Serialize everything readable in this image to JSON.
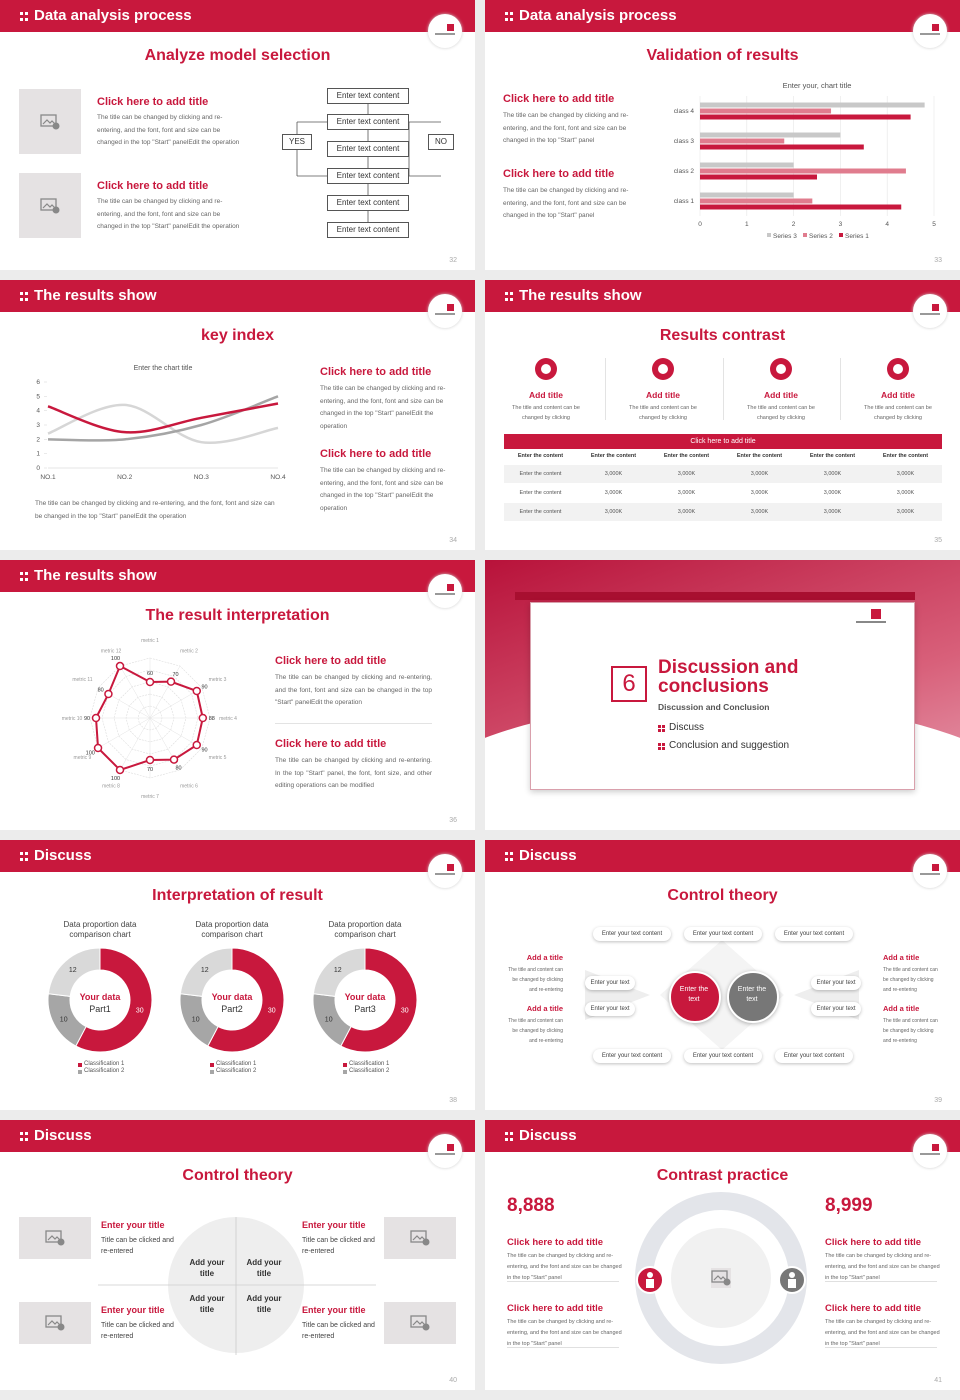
{
  "slides": [
    {
      "header": "Data analysis process",
      "title": "Analyze model selection",
      "page": "32",
      "items": [
        {
          "title": "Click here to add title",
          "text": "The title can be changed by clicking and re-entering, and the font, font and size can be changed in the top \"Start\" panelEdit the operation"
        },
        {
          "title": "Click here to add title",
          "text": "The title can be changed by clicking and re-entering, and the font, font and size can be changed in the top \"Start\" panelEdit the operation"
        }
      ],
      "flow": {
        "boxes": [
          "Enter text content",
          "Enter text content",
          "Enter text content",
          "Enter text content",
          "Enter text content",
          "Enter text content"
        ],
        "yes": "YES",
        "no": "NO"
      }
    },
    {
      "header": "Data analysis process",
      "title": "Validation of results",
      "page": "33",
      "items": [
        {
          "title": "Click here to add title",
          "text": "The title can be changed by clicking and re-entering, and the font, font and size can be changed in the top \"Start\" panel"
        },
        {
          "title": "Click here to add title",
          "text": "The title can be changed by clicking and re-entering, and the font, font and size can be changed in the top \"Start\" panel"
        }
      ],
      "chart": {
        "type": "bar",
        "orientation": "horizontal",
        "title": "Enter your, chart title",
        "categories": [
          "class 1",
          "class 2",
          "class 3",
          "class 4"
        ],
        "series": [
          {
            "name": "Series 1",
            "color": "#c8183d",
            "values": [
              4.3,
              2.5,
              3.5,
              4.5
            ]
          },
          {
            "name": "Series 2",
            "color": "#e07c8e",
            "values": [
              2.4,
              4.4,
              1.8,
              2.8
            ]
          },
          {
            "name": "Series 3",
            "color": "#c8c8c8",
            "values": [
              2.0,
              2.0,
              3.0,
              4.8
            ]
          }
        ],
        "xlim": [
          0,
          5
        ],
        "xticks": [
          0,
          1,
          2,
          3,
          4,
          5
        ],
        "grid": true
      }
    },
    {
      "header": "The results show",
      "title": "key index",
      "page": "34",
      "note": "The title can be changed by clicking and re-entering, and the font, font and size can be changed in the top \"Start\" panelEdit the operation",
      "items": [
        {
          "title": "Click here to add title",
          "text": "The title can be changed by clicking and re-entering, and the font, font and size can be changed in the top \"Start\" panelEdit the operation"
        },
        {
          "title": "Click here to add title",
          "text": "The title can be changed by clicking and re-entering, and the font, font and size can be changed in the top \"Start\" panelEdit the operation"
        }
      ],
      "chart": {
        "type": "line",
        "smooth": true,
        "title": "Enter the chart title",
        "categories": [
          "NO.1",
          "NO.2",
          "NO.3",
          "NO.4"
        ],
        "series": [
          {
            "color": "#c8183d",
            "values": [
              4.3,
              2.5,
              3.5,
              4.5
            ]
          },
          {
            "color": "#a5a5a5",
            "values": [
              2.0,
              2.0,
              3.0,
              5.0
            ]
          },
          {
            "color": "#d6d6d6",
            "values": [
              2.4,
              4.4,
              1.8,
              2.8
            ]
          }
        ],
        "ylim": [
          0,
          6
        ],
        "yticks": [
          0,
          1,
          2,
          3,
          4,
          5,
          6
        ]
      }
    },
    {
      "header": "The results show",
      "title": "Results contrast",
      "page": "35",
      "columns": [
        {
          "title": "Add title",
          "text": "The title and content can be changed by clicking"
        },
        {
          "title": "Add title",
          "text": "The title and content can be changed by clicking"
        },
        {
          "title": "Add title",
          "text": "The title and content can be changed by clicking"
        },
        {
          "title": "Add title",
          "text": "The title and content can be changed by clicking"
        }
      ],
      "table": {
        "caption": "Click here to add title",
        "header": [
          "Enter the content",
          "Enter the content",
          "Enter the content",
          "Enter the content",
          "Enter the content",
          "Enter the content"
        ],
        "rows": [
          [
            "Enter the content",
            "3,000K",
            "3,000K",
            "3,000K",
            "3,000K",
            "3,000K"
          ],
          [
            "Enter the content",
            "3,000K",
            "3,000K",
            "3,000K",
            "3,000K",
            "3,000K"
          ],
          [
            "Enter the content",
            "3,000K",
            "3,000K",
            "3,000K",
            "3,000K",
            "3,000K"
          ]
        ]
      }
    },
    {
      "header": "The results show",
      "title": "The result interpretation",
      "page": "36",
      "chart": {
        "type": "radar",
        "axes": [
          "metric 1",
          "metric 2",
          "metric 3",
          "metric 4",
          "metric 5",
          "metric 6",
          "metric 7",
          "metric 8",
          "metric 9",
          "metric 10",
          "metric 11",
          "metric 12"
        ],
        "values": [
          60,
          70,
          90,
          88,
          90,
          80,
          70,
          100,
          100,
          90,
          80,
          100
        ],
        "color": "#c8183d",
        "rlim": [
          0,
          100
        ]
      },
      "items": [
        {
          "title": "Click here to add title",
          "text": "The title can be changed by clicking and re-entering, and the font, font and size can be changed in the top \"Start\" panelEdit the operation"
        },
        {
          "title": "Click here to add title",
          "text": "The title can be changed by clicking and re-entering. In the top \"Start\" panel, the font, font size, and other editing operations can be modified"
        }
      ]
    },
    {
      "number": "6",
      "title": "Discussion and conclusions",
      "subtitle": "Discussion and Conclusion",
      "bullets": [
        "Discuss",
        "Conclusion and suggestion"
      ],
      "page": "37"
    },
    {
      "header": "Discuss",
      "title": "Interpretation of result",
      "page": "38",
      "charts": [
        {
          "type": "donut",
          "title": "Data proportion data comparison chart",
          "center_title": "Your data",
          "center_label": "Part1",
          "categories": [
            "Classification 1",
            "Classification 2",
            null
          ],
          "values": [
            30,
            10,
            12
          ],
          "colors": [
            "#c8183d",
            "#a6a6a6",
            "#d9d9d9"
          ]
        },
        {
          "type": "donut",
          "title": "Data proportion data comparison chart",
          "center_title": "Your data",
          "center_label": "Part2",
          "categories": [
            "Classification 1",
            "Classification 2",
            null
          ],
          "values": [
            30,
            10,
            12
          ],
          "colors": [
            "#c8183d",
            "#a6a6a6",
            "#d9d9d9"
          ]
        },
        {
          "type": "donut",
          "title": "Data proportion data comparison chart",
          "center_title": "Your data",
          "center_label": "Part3",
          "categories": [
            "Classification 1",
            "Classification 2",
            null
          ],
          "values": [
            30,
            10,
            12
          ],
          "colors": [
            "#c8183d",
            "#a6a6a6",
            "#d9d9d9"
          ]
        }
      ]
    },
    {
      "header": "Discuss",
      "title": "Control theory",
      "page": "39",
      "top_boxes": [
        "Enter your text content",
        "Enter your text content",
        "Enter your text content"
      ],
      "bottom_boxes": [
        "Enter your text content",
        "Enter your text content",
        "Enter your text content"
      ],
      "left_boxes": [
        "Enter your text",
        "Enter your text"
      ],
      "right_boxes": [
        "Enter your text",
        "Enter your text"
      ],
      "circles": [
        "Enter the text",
        "Enter the text"
      ],
      "left_items": [
        {
          "title": "Add a title",
          "text": "The title and content can be changed by clicking and re-entering"
        },
        {
          "title": "Add a title",
          "text": "The title and content can be changed by clicking and re-entering"
        }
      ],
      "right_items": [
        {
          "title": "Add a title",
          "text": "The title and content can be changed by clicking and re-entering"
        },
        {
          "title": "Add a title",
          "text": "The title and content can be changed by clicking and re-entering"
        }
      ]
    },
    {
      "header": "Discuss",
      "title": "Control theory",
      "page": "40",
      "quadrants": [
        "Add your title",
        "Add your title",
        "Add your title",
        "Add your title"
      ],
      "items": [
        {
          "title": "Enter your title",
          "text": "Title can be clicked and re-entered"
        },
        {
          "title": "Enter your title",
          "text": "Title can be clicked and re-entered"
        },
        {
          "title": "Enter your title",
          "text": "Title can be clicked and re-entered"
        },
        {
          "title": "Enter your title",
          "text": "Title can be clicked and re-entered"
        }
      ]
    },
    {
      "header": "Discuss",
      "title": "Contrast practice",
      "page": "41",
      "figures": [
        "8,888",
        "8,999"
      ],
      "items": [
        {
          "title": "Click here to add title",
          "text": "The title can be changed by clicking and re-entering, and the font and size can be changed in the top \"Start\" panel"
        },
        {
          "title": "Click here to add title",
          "text": "The title can be changed by clicking and re-entering, and the font and size can be changed in the top \"Start\" panel"
        },
        {
          "title": "Click here to add title",
          "text": "The title can be changed by clicking and re-entering, and the font and size can be changed in the top \"Start\" panel"
        },
        {
          "title": "Click here to add title",
          "text": "The title can be changed by clicking and re-entering, and the font and size can be changed in the top \"Start\" panel"
        }
      ]
    }
  ]
}
